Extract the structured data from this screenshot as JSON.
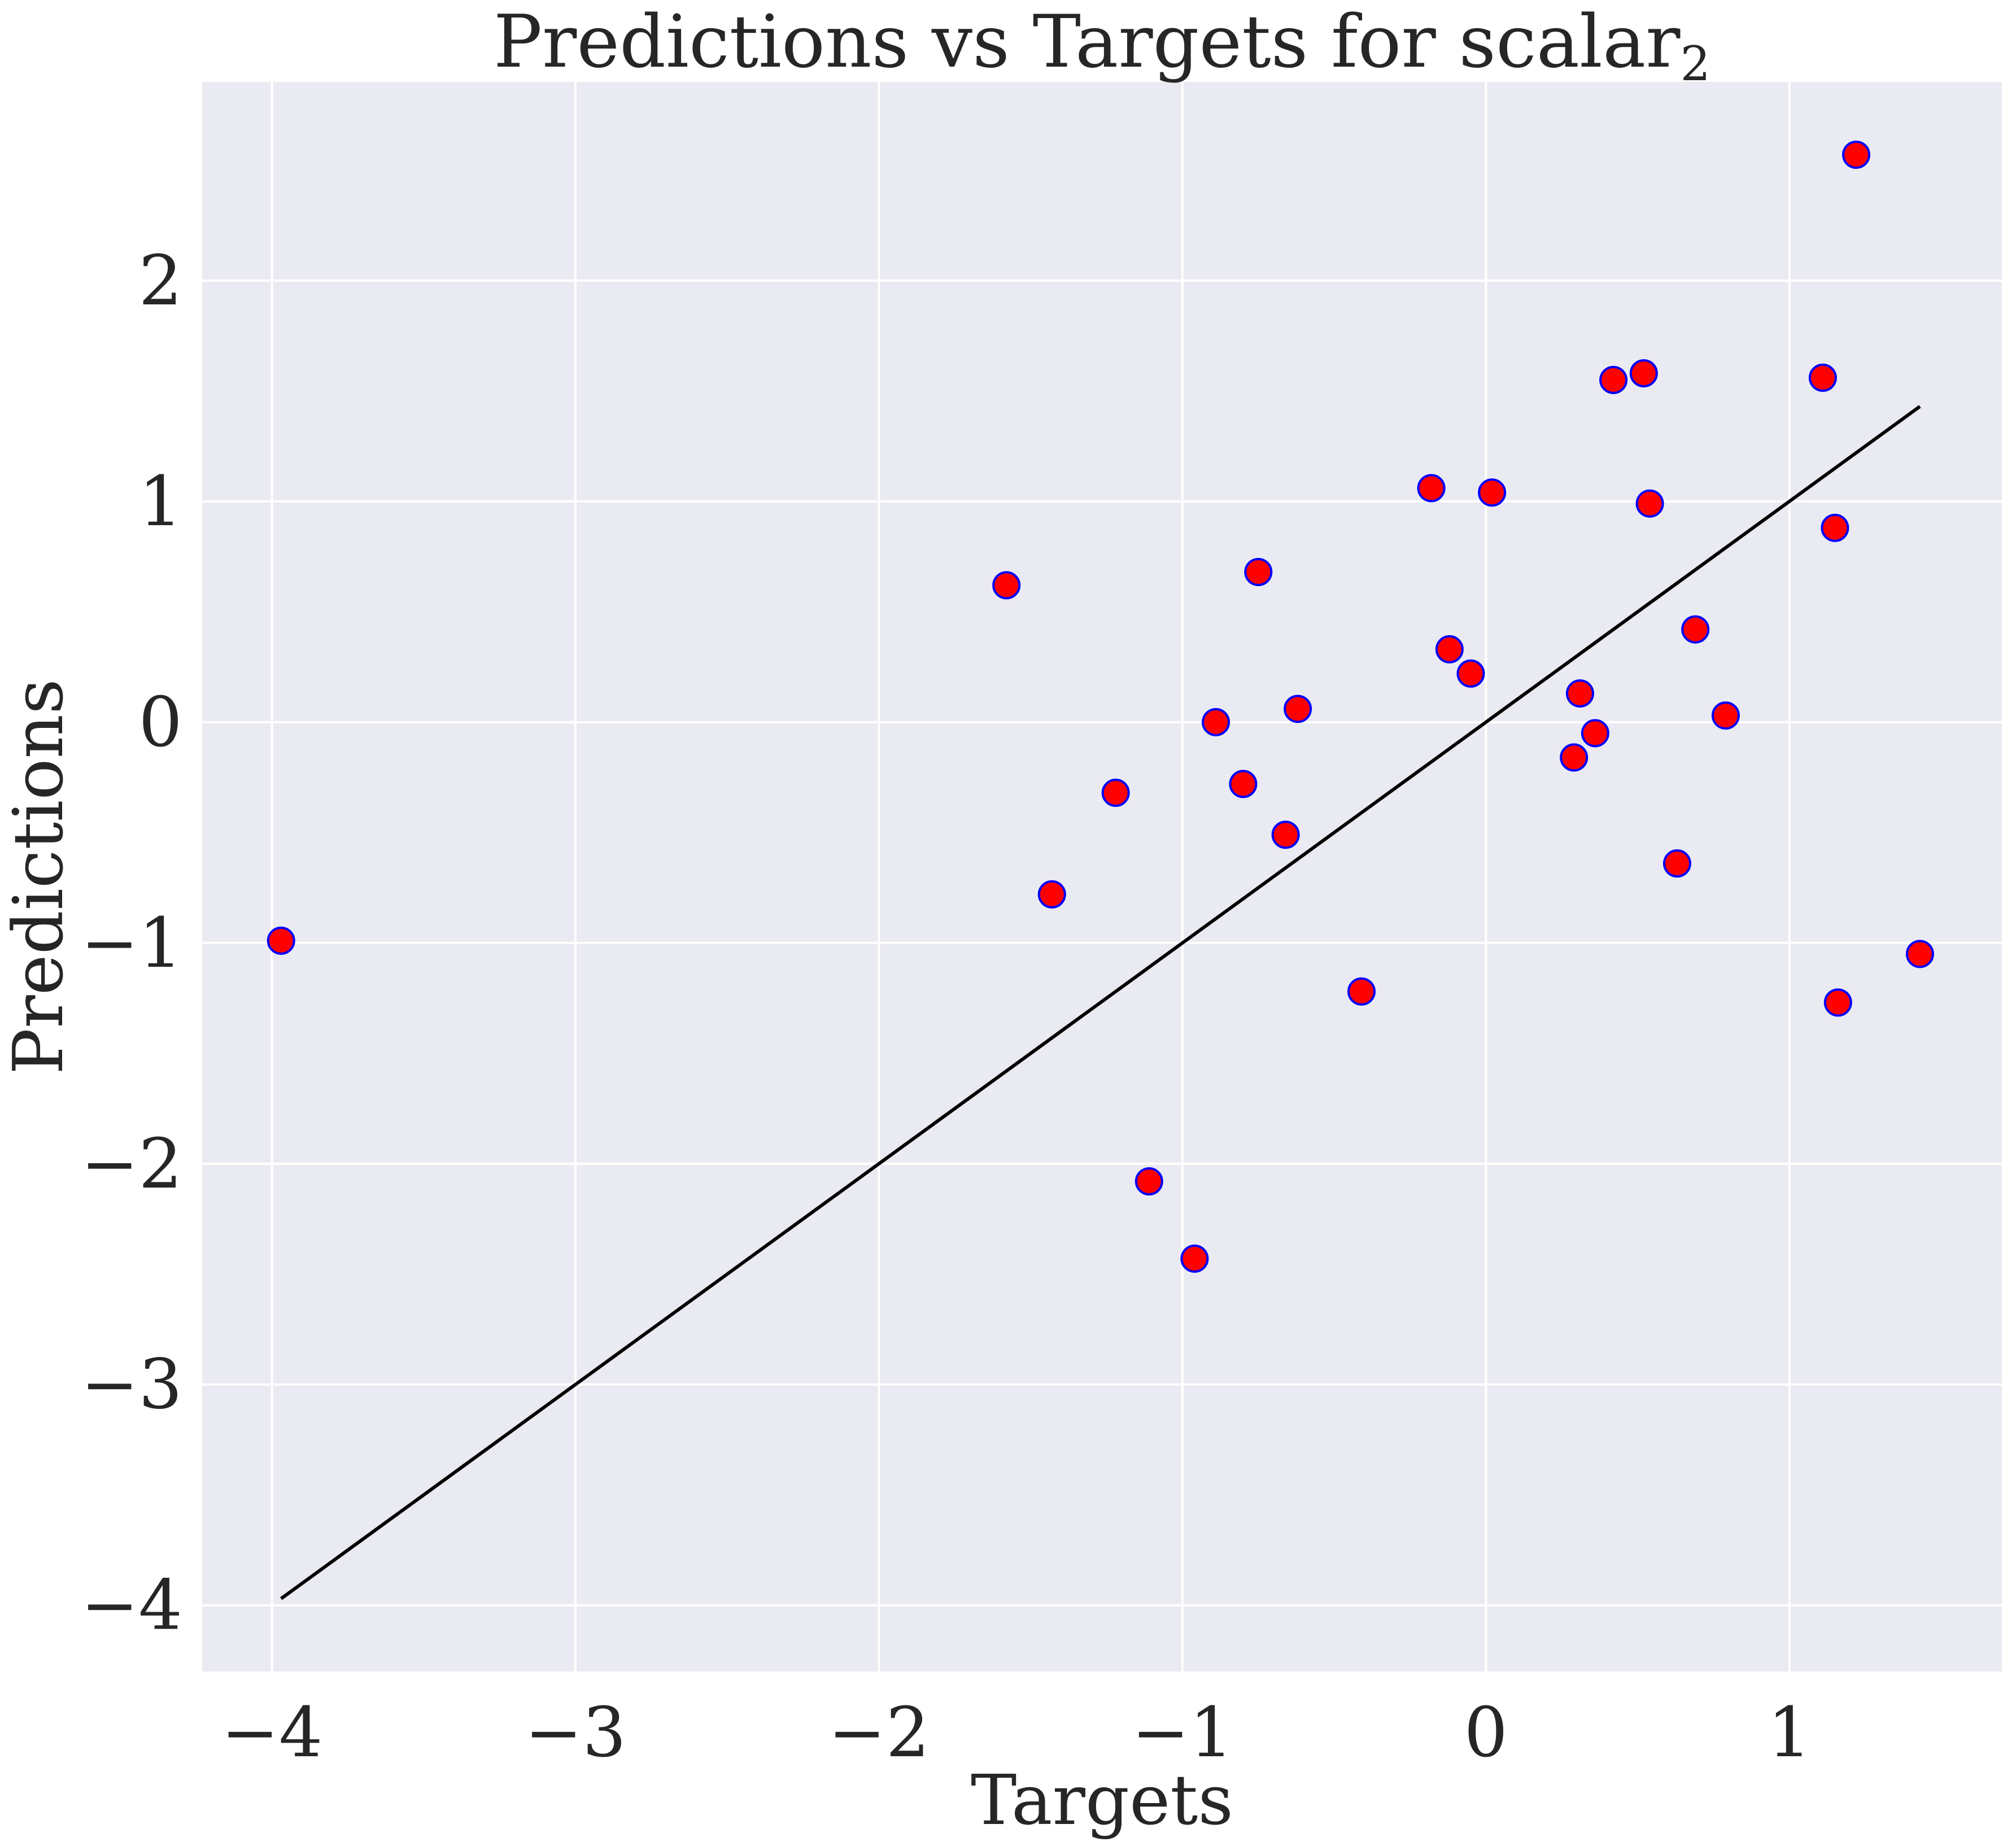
{
  "chart_data": {
    "type": "scatter",
    "title": "Predictions vs Targets for scalar",
    "title_subscript": "2",
    "xlabel": "Targets",
    "ylabel": "Predictions",
    "xlim": [
      -4.23,
      1.7
    ],
    "ylim": [
      -4.3,
      2.9
    ],
    "xticks": [
      -4,
      -3,
      -2,
      -1,
      0,
      1
    ],
    "yticks": [
      -4,
      -3,
      -2,
      -1,
      0,
      1,
      2
    ],
    "xtick_labels": [
      "−4",
      "−3",
      "−2",
      "−1",
      "0",
      "1"
    ],
    "ytick_labels": [
      "−4",
      "−3",
      "−2",
      "−1",
      "0",
      "1",
      "2"
    ],
    "grid": true,
    "marker_color": "#ff0000",
    "marker_edge_color": "#0000ff",
    "line_color": "#000000",
    "reference_line": {
      "x": [
        -3.97,
        1.43
      ],
      "y": [
        -3.97,
        1.43
      ]
    },
    "points": [
      {
        "x": -3.97,
        "y": -0.99
      },
      {
        "x": -1.58,
        "y": 0.62
      },
      {
        "x": -1.43,
        "y": -0.78
      },
      {
        "x": -1.22,
        "y": -0.32
      },
      {
        "x": -1.11,
        "y": -2.08
      },
      {
        "x": -0.96,
        "y": -2.43
      },
      {
        "x": -0.89,
        "y": 0.0
      },
      {
        "x": -0.8,
        "y": -0.28
      },
      {
        "x": -0.75,
        "y": 0.68
      },
      {
        "x": -0.66,
        "y": -0.51
      },
      {
        "x": -0.62,
        "y": 0.06
      },
      {
        "x": -0.41,
        "y": -1.22
      },
      {
        "x": -0.18,
        "y": 1.06
      },
      {
        "x": -0.12,
        "y": 0.33
      },
      {
        "x": -0.05,
        "y": 0.22
      },
      {
        "x": 0.02,
        "y": 1.04
      },
      {
        "x": 0.29,
        "y": -0.16
      },
      {
        "x": 0.31,
        "y": 0.13
      },
      {
        "x": 0.36,
        "y": -0.05
      },
      {
        "x": 0.42,
        "y": 1.55
      },
      {
        "x": 0.52,
        "y": 1.58
      },
      {
        "x": 0.54,
        "y": 0.99
      },
      {
        "x": 0.63,
        "y": -0.64
      },
      {
        "x": 0.69,
        "y": 0.42
      },
      {
        "x": 0.79,
        "y": 0.03
      },
      {
        "x": 1.11,
        "y": 1.56
      },
      {
        "x": 1.15,
        "y": 0.88
      },
      {
        "x": 1.16,
        "y": -1.27
      },
      {
        "x": 1.22,
        "y": 2.57
      },
      {
        "x": 1.43,
        "y": -1.05
      }
    ]
  }
}
